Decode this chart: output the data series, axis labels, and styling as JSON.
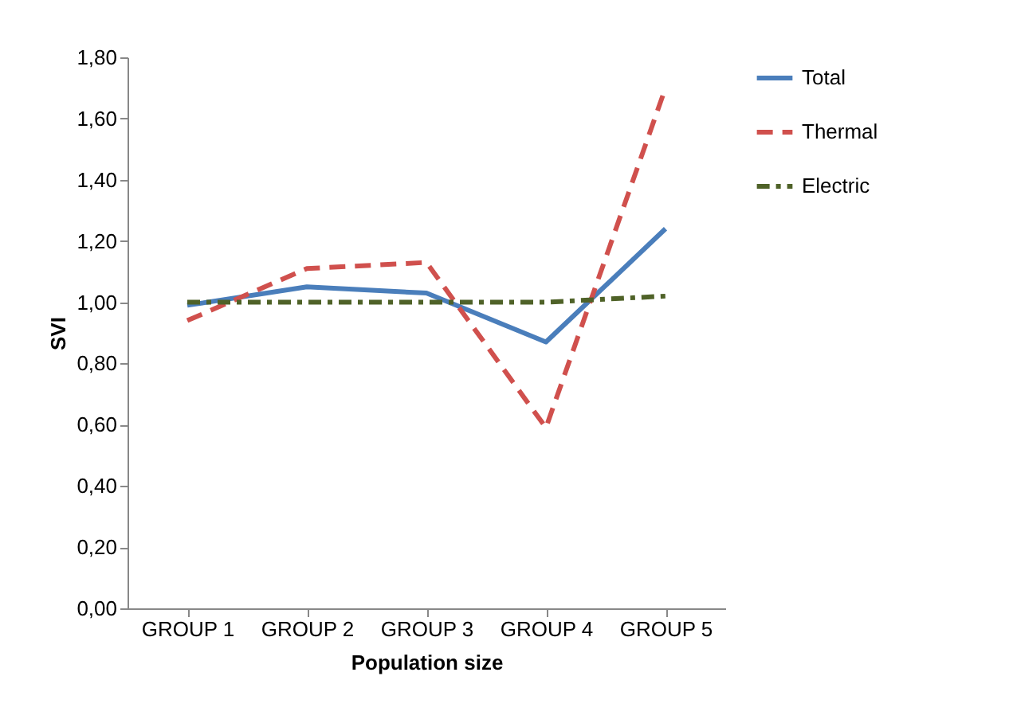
{
  "chart_data": {
    "type": "line",
    "xlabel": "Population size",
    "ylabel": "SVI",
    "categories": [
      "GROUP 1",
      "GROUP 2",
      "GROUP 3",
      "GROUP 4",
      "GROUP 5"
    ],
    "series": [
      {
        "name": "Total",
        "color": "#4a7ebb",
        "line_style": "solid",
        "values": [
          0.99,
          1.05,
          1.03,
          0.87,
          1.24
        ]
      },
      {
        "name": "Thermal",
        "color": "#d0504d",
        "line_style": "dashed",
        "values": [
          0.94,
          1.11,
          1.13,
          0.59,
          1.7
        ]
      },
      {
        "name": "Electric",
        "color": "#4f6228",
        "line_style": "dashdot",
        "values": [
          1.0,
          1.0,
          1.0,
          1.0,
          1.02
        ]
      }
    ],
    "ylim": [
      0,
      1.8
    ],
    "yticks": [
      {
        "value": 0,
        "label": "0,00"
      },
      {
        "value": 0.2,
        "label": "0,20"
      },
      {
        "value": 0.4,
        "label": "0,40"
      },
      {
        "value": 0.6,
        "label": "0,60"
      },
      {
        "value": 0.8,
        "label": "0,80"
      },
      {
        "value": 1.0,
        "label": "1,00"
      },
      {
        "value": 1.2,
        "label": "1,20"
      },
      {
        "value": 1.4,
        "label": "1,40"
      },
      {
        "value": 1.6,
        "label": "1,60"
      },
      {
        "value": 1.8,
        "label": "1,80"
      }
    ],
    "grid": false,
    "legend": "right",
    "marker": "none"
  }
}
